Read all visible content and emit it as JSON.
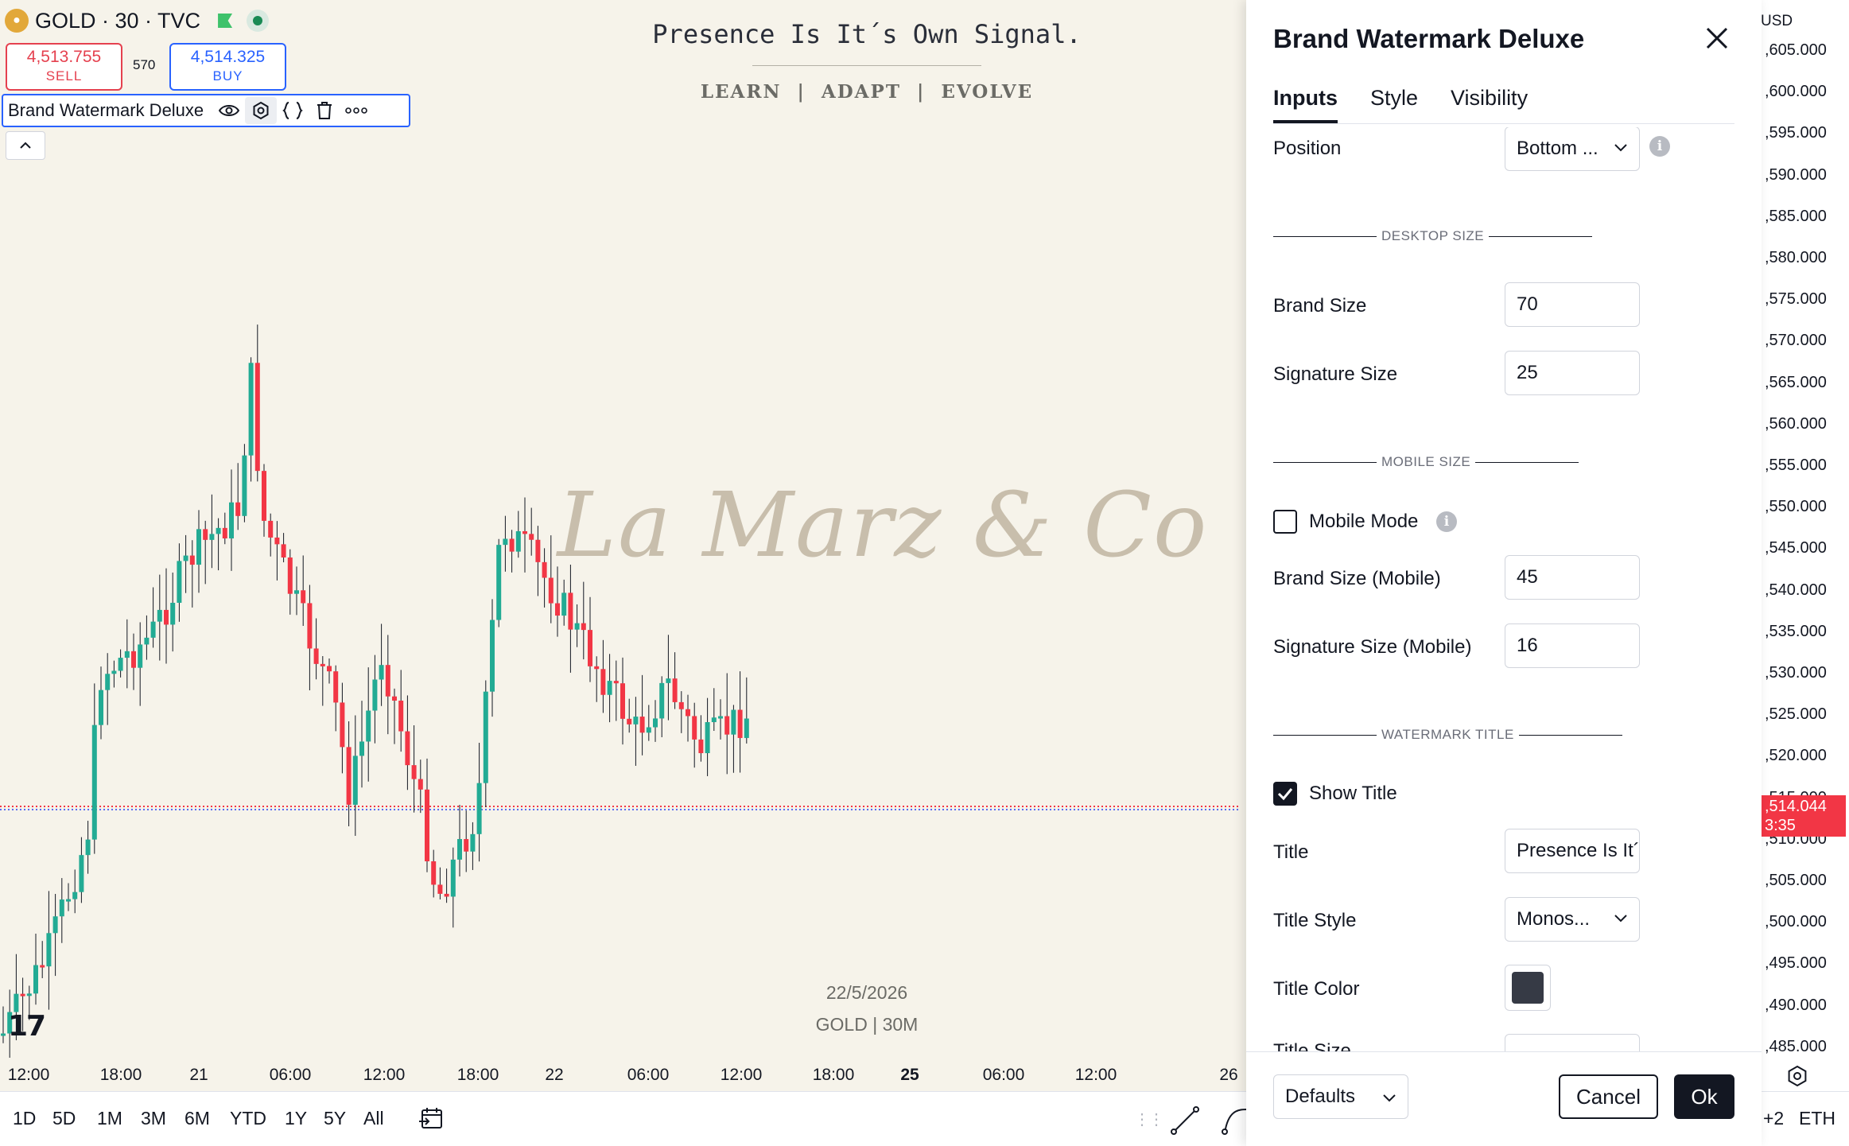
{
  "symbol": {
    "title": "GOLD · 30 · TVC",
    "sell_price": "4,513.755",
    "sell_label": "SELL",
    "spread": "570",
    "buy_price": "4,514.325",
    "buy_label": "BUY"
  },
  "indicator": {
    "name": "Brand Watermark Deluxe",
    "icons": [
      "eye-icon",
      "settings-icon",
      "source-code-icon",
      "trash-icon",
      "more-icon"
    ]
  },
  "watermark": {
    "title": "Presence Is It´s Own Signal.",
    "tagline": "LEARN  |  ADAPT  |  EVOLVE",
    "brand": "La Marz & Co",
    "date": "22/5/2026",
    "signature": "GOLD | 30M"
  },
  "time_axis": {
    "labels": [
      {
        "text": "12:00",
        "bold": false
      },
      {
        "text": "18:00",
        "bold": false
      },
      {
        "text": "21",
        "bold": false
      },
      {
        "text": "06:00",
        "bold": false
      },
      {
        "text": "12:00",
        "bold": false
      },
      {
        "text": "18:00",
        "bold": false
      },
      {
        "text": "22",
        "bold": false
      },
      {
        "text": "06:00",
        "bold": false
      },
      {
        "text": "12:00",
        "bold": false
      },
      {
        "text": "18:00",
        "bold": false
      },
      {
        "text": "25",
        "bold": true
      },
      {
        "text": "06:00",
        "bold": false
      },
      {
        "text": "12:00",
        "bold": false
      },
      {
        "text": "26",
        "bold": false
      }
    ]
  },
  "price_axis": {
    "currency": "USD",
    "labels": [
      ",605.000",
      ",600.000",
      ",595.000",
      ",590.000",
      ",585.000",
      ",580.000",
      ",575.000",
      ",570.000",
      ",565.000",
      ",560.000",
      ",555.000",
      ",550.000",
      ",545.000",
      ",540.000",
      ",535.000",
      ",530.000",
      ",525.000",
      ",520.000",
      ",515.000",
      ",510.000",
      ",505.000",
      ",500.000",
      ",495.000",
      ",490.000",
      ",485.000"
    ],
    "current_price": ",514.044",
    "countdown": "3:35"
  },
  "ranges": [
    "1D",
    "5D",
    "1M",
    "3M",
    "6M",
    "YTD",
    "1Y",
    "5Y",
    "All"
  ],
  "bottom_right": {
    "compare_badge": "+2",
    "currency_label": "ETH"
  },
  "colors": {
    "up": "#22ab94",
    "down": "#f23645",
    "accent": "#2962ff",
    "background": "#f6f3ea",
    "watermark": "#c8beac"
  },
  "dialog": {
    "title": "Brand Watermark Deluxe",
    "tabs": [
      {
        "label": "Inputs",
        "active": true
      },
      {
        "label": "Style",
        "active": false
      },
      {
        "label": "Visibility",
        "active": false
      }
    ],
    "position_label": "Position",
    "position_value": "Bottom ...",
    "section_desktop": "DESKTOP SIZE",
    "brand_size_label": "Brand Size",
    "brand_size_value": "70",
    "signature_size_label": "Signature Size",
    "signature_size_value": "25",
    "section_mobile": "MOBILE SIZE",
    "mobile_mode_label": "Mobile Mode",
    "mobile_mode_checked": false,
    "brand_size_mobile_label": "Brand Size (Mobile)",
    "brand_size_mobile_value": "45",
    "signature_size_mobile_label": "Signature Size (Mobile)",
    "signature_size_mobile_value": "16",
    "section_title": "WATERMARK TITLE",
    "show_title_label": "Show Title",
    "show_title_checked": true,
    "title_label": "Title",
    "title_value": "Presence Is It´s Own Signal.",
    "title_style_label": "Title Style",
    "title_style_value": "Monos...",
    "title_color_label": "Title Color",
    "title_color_value": "#363a45",
    "title_size_label": "Title Size",
    "defaults_label": "Defaults",
    "cancel_label": "Cancel",
    "ok_label": "Ok"
  }
}
